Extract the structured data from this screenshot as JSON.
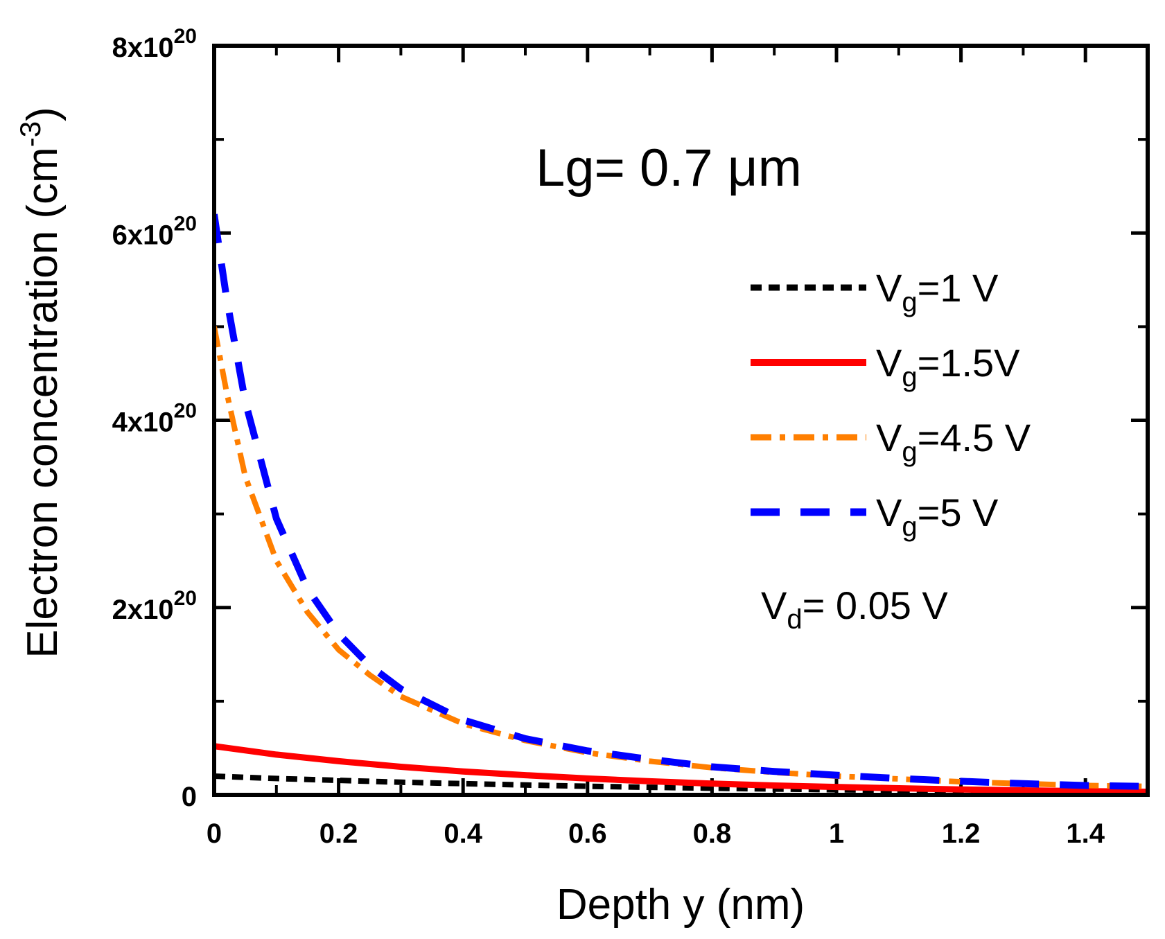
{
  "chart_data": {
    "type": "line",
    "xlabel": "Depth y (nm)",
    "ylabel_main": "Electron concentration (cm",
    "ylabel_sup": "-3",
    "ylabel_close": ")",
    "xlim": [
      0,
      1.5
    ],
    "ylim": [
      0,
      8e+20
    ],
    "x_ticks": [
      {
        "value": 0,
        "label": "0"
      },
      {
        "value": 0.2,
        "label": "0.2"
      },
      {
        "value": 0.4,
        "label": "0.4"
      },
      {
        "value": 0.6,
        "label": "0.6"
      },
      {
        "value": 0.8,
        "label": "0.8"
      },
      {
        "value": 1.0,
        "label": "1"
      },
      {
        "value": 1.2,
        "label": "1.2"
      },
      {
        "value": 1.4,
        "label": "1.4"
      }
    ],
    "y_ticks": [
      {
        "value": 0,
        "base": "0",
        "exp": ""
      },
      {
        "value": 2e+20,
        "base": "2x10",
        "exp": "20"
      },
      {
        "value": 4e+20,
        "base": "4x10",
        "exp": "20"
      },
      {
        "value": 6e+20,
        "base": "6x10",
        "exp": "20"
      },
      {
        "value": 8e+20,
        "base": "8x10",
        "exp": "20"
      }
    ],
    "x_minor_step": 0.1,
    "y_minor_step": 1e+20,
    "series": [
      {
        "id": "vg1",
        "name_main": "V",
        "name_sub": "g",
        "name_rest": "=1 V",
        "color": "#000000",
        "dash": "short",
        "x": [
          0,
          0.1,
          0.2,
          0.3,
          0.4,
          0.5,
          0.6,
          0.7,
          0.8,
          0.9,
          1.0,
          1.1,
          1.2,
          1.3,
          1.4,
          1.5
        ],
        "y": [
          2e+19,
          1.75e+19,
          1.55e+19,
          1.35e+19,
          1.2e+19,
          1.05e+19,
          9.2e+18,
          8.1e+18,
          7.1e+18,
          6.2e+18,
          5.5e+18,
          4.8e+18,
          4.2e+18,
          3.7e+18,
          3.2e+18,
          2.8e+18
        ]
      },
      {
        "id": "vg15",
        "name_main": "V",
        "name_sub": "g",
        "name_rest": "=1.5V",
        "color": "#ff0000",
        "dash": "solid",
        "x": [
          0,
          0.1,
          0.2,
          0.3,
          0.4,
          0.5,
          0.6,
          0.7,
          0.8,
          0.9,
          1.0,
          1.1,
          1.2,
          1.3,
          1.4,
          1.5
        ],
        "y": [
          5.2e+19,
          4.3e+19,
          3.6e+19,
          3e+19,
          2.5e+19,
          2.1e+19,
          1.75e+19,
          1.45e+19,
          1.2e+19,
          1e+19,
          8.4e+18,
          7e+18,
          5.8e+18,
          4.8e+18,
          4e+18,
          3.3e+18
        ]
      },
      {
        "id": "vg45",
        "name_main": "V",
        "name_sub": "g",
        "name_rest": "=4.5 V",
        "color": "#ff7f00",
        "dash": "dashdot",
        "x": [
          0,
          0.02,
          0.05,
          0.1,
          0.15,
          0.2,
          0.25,
          0.3,
          0.4,
          0.5,
          0.6,
          0.7,
          0.8,
          0.9,
          1.0,
          1.1,
          1.2,
          1.3,
          1.4,
          1.5
        ],
        "y": [
          5e+20,
          4.3e+20,
          3.4e+20,
          2.5e+20,
          1.95e+20,
          1.55e+20,
          1.28e+20,
          1.05e+20,
          7.6e+19,
          5.8e+19,
          4.5e+19,
          3.6e+19,
          2.9e+19,
          2.4e+19,
          2e+19,
          1.7e+19,
          1.4e+19,
          1.2e+19,
          1e+19,
          9e+18
        ]
      },
      {
        "id": "vg5",
        "name_main": "V",
        "name_sub": "g",
        "name_rest": "=5 V",
        "color": "#0000ff",
        "dash": "long",
        "x": [
          0,
          0.02,
          0.05,
          0.1,
          0.15,
          0.2,
          0.25,
          0.3,
          0.4,
          0.5,
          0.6,
          0.7,
          0.8,
          0.9,
          1.0,
          1.1,
          1.2,
          1.3,
          1.4,
          1.5
        ],
        "y": [
          6.2e+20,
          5.3e+20,
          4.2e+20,
          2.95e+20,
          2.2e+20,
          1.72e+20,
          1.38e+20,
          1.13e+20,
          8e+19,
          6e+19,
          4.7e+19,
          3.8e+19,
          3e+19,
          2.5e+19,
          2.1e+19,
          1.75e+19,
          1.45e+19,
          1.2e+19,
          1e+19,
          9e+18
        ]
      }
    ],
    "annotations": {
      "lg": "Lg= 0.7 μm",
      "vd_main": "V",
      "vd_sub": "d",
      "vd_rest": "= 0.05 V"
    }
  }
}
